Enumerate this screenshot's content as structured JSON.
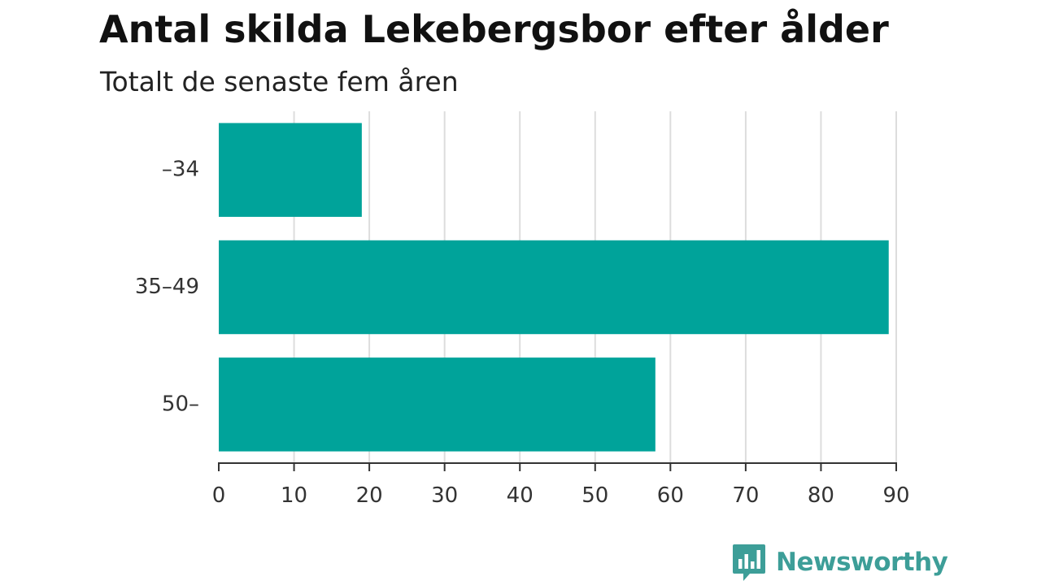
{
  "chart_data": {
    "type": "bar",
    "orientation": "horizontal",
    "title": "Antal skilda Lekebergsbor efter ålder",
    "subtitle": "Totalt de senaste fem åren",
    "categories": [
      "–34",
      "35–49",
      "50–"
    ],
    "values": [
      19,
      89,
      58
    ],
    "xlim": [
      0,
      90
    ],
    "xticks": [
      0,
      10,
      20,
      30,
      40,
      50,
      60,
      70,
      80,
      90
    ],
    "grid": true,
    "bar_color": "#00a39a"
  },
  "brand": {
    "name": "Newsworthy",
    "color": "#3d9e98",
    "icon": "newsworthy-chart-icon"
  }
}
